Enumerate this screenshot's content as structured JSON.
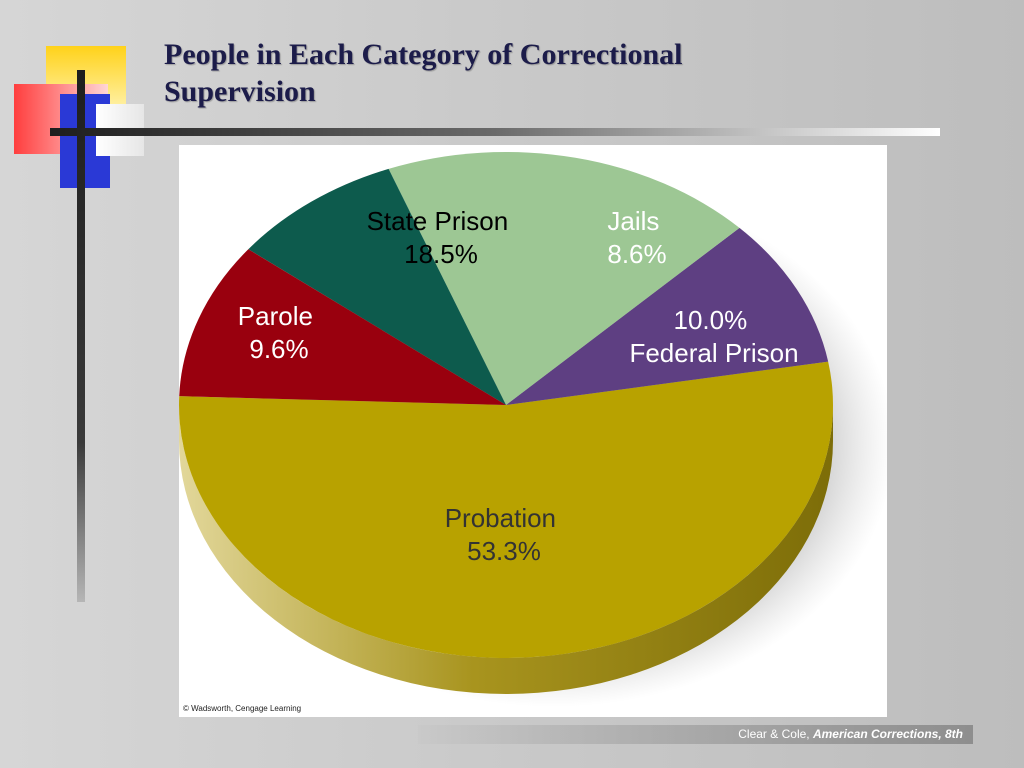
{
  "slide": {
    "title": "People in Each Category of Correctional Supervision",
    "credit": "© Wadsworth, Cengage Learning",
    "footer_author": "Clear & Cole, ",
    "footer_book": "American Corrections, 8th"
  },
  "chart_data": {
    "type": "pie",
    "title": "People in Each Category of Correctional Supervision",
    "slices": [
      {
        "name": "Probation",
        "value": 53.3,
        "color": "#b8a200",
        "label_color": "#333333"
      },
      {
        "name": "Parole",
        "value": 9.6,
        "color": "#5e3f82",
        "label_color": "#ffffff"
      },
      {
        "name": "State Prison",
        "value": 18.5,
        "color": "#9dc794",
        "label_color": "#333333"
      },
      {
        "name": "Jails",
        "value": 8.6,
        "color": "#0d5b4d",
        "label_color": "#ffffff"
      },
      {
        "name": "Federal Prison",
        "value": 10.0,
        "color": "#99000e",
        "label_color": "#ffffff"
      }
    ],
    "labels": [
      {
        "name": "State Prison",
        "pct": "18.5%"
      },
      {
        "name": "Jails",
        "pct": "8.6%"
      },
      {
        "name": "Parole",
        "pct": "9.6%"
      },
      {
        "name": "Federal Prison",
        "pct": "10.0%"
      },
      {
        "name": "Probation",
        "pct": "53.3%"
      }
    ]
  }
}
